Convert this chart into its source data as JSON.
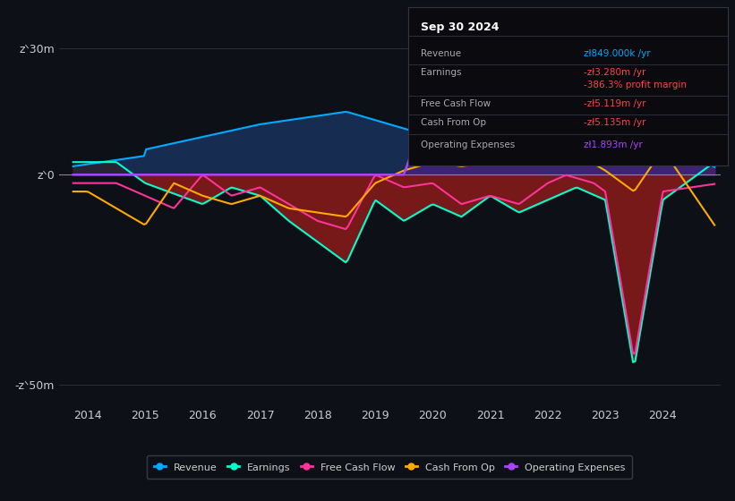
{
  "background_color": "#0d1117",
  "plot_bg_color": "#0d1117",
  "title": "Sep 30 2024",
  "y_label_top": "zᐠ30m",
  "y_label_mid": "zᐠ0",
  "y_label_bot": "-zᐠ50m",
  "x_ticks": [
    2014,
    2015,
    2016,
    2017,
    2018,
    2019,
    2020,
    2021,
    2022,
    2023,
    2024
  ],
  "ylim": [
    -55000000,
    38000000
  ],
  "xlim": [
    2013.5,
    2025.0
  ],
  "colors": {
    "revenue": "#00aaff",
    "earnings": "#00ffcc",
    "free_cash_flow": "#ff3399",
    "cash_from_op": "#ffaa00",
    "operating_expenses": "#aa44ff",
    "fill_revenue_pos": "#1a3a6a",
    "fill_earnings_neg": "#8b1a1a",
    "fill_opex_pos": "#4a2080"
  },
  "info_box": {
    "title": "Sep 30 2024",
    "revenue_label": "Revenue",
    "revenue_value": "zł849.000k /yr",
    "earnings_label": "Earnings",
    "earnings_value": "-zł3.280m /yr",
    "margin_value": "-386.3% profit margin",
    "fcf_label": "Free Cash Flow",
    "fcf_value": "-zł5.119m /yr",
    "cfop_label": "Cash From Op",
    "cfop_value": "-zł5.135m /yr",
    "opex_label": "Operating Expenses",
    "opex_value": "zł1.893m /yr"
  },
  "legend": [
    {
      "label": "Revenue",
      "color": "#00aaff"
    },
    {
      "label": "Earnings",
      "color": "#00ffcc"
    },
    {
      "label": "Free Cash Flow",
      "color": "#ff3399"
    },
    {
      "label": "Cash From Op",
      "color": "#ffaa00"
    },
    {
      "label": "Operating Expenses",
      "color": "#aa44ff"
    }
  ]
}
